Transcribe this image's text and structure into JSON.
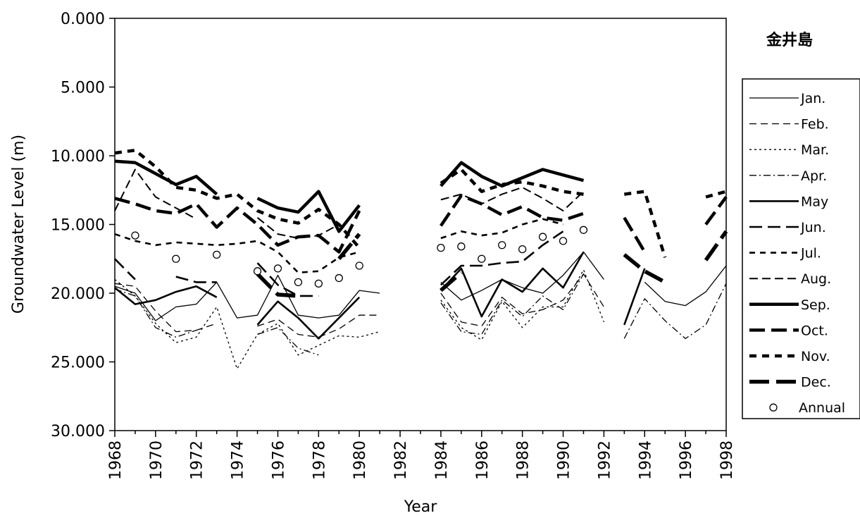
{
  "chart_data": {
    "type": "line",
    "station_label": "金井島",
    "xlabel": "Year",
    "ylabel": "Groundwater  Level (m)",
    "xlim": [
      1968,
      1998
    ],
    "ylim": [
      0,
      30
    ],
    "y_inverted": true,
    "grid": false,
    "legend_position": "right",
    "x_ticks": [
      "1968",
      "1970",
      "1972",
      "1974",
      "1976",
      "1978",
      "1980",
      "1982",
      "1984",
      "1986",
      "1988",
      "1990",
      "1992",
      "1994",
      "1996",
      "1998"
    ],
    "y_ticks": [
      "0.000",
      "5.000",
      "10.000",
      "15.000",
      "20.000",
      "25.000",
      "30.000"
    ],
    "series": [
      {
        "name": "Jan.",
        "style": "thin-solid",
        "x": [
          1968,
          1969,
          1970,
          1971,
          1972,
          1973,
          1974,
          1975,
          1976,
          1977,
          1978,
          1979,
          1980,
          1981,
          null,
          1984,
          1985,
          1986,
          1987,
          1988,
          1989,
          1990,
          1991,
          1992,
          null,
          1994,
          1995,
          1996,
          1997,
          1998
        ],
        "y": [
          19.5,
          20.0,
          22.0,
          21.0,
          20.8,
          19.2,
          21.8,
          21.6,
          18.7,
          21.6,
          21.8,
          21.6,
          19.8,
          20.0,
          null,
          19.2,
          20.5,
          19.8,
          19.0,
          19.6,
          20.0,
          18.7,
          17.0,
          19.0,
          null,
          19.2,
          20.6,
          20.9,
          19.9,
          18.0
        ]
      },
      {
        "name": "Feb.",
        "style": "thin-dash",
        "x": [
          1968,
          1969,
          1970,
          1971,
          1972,
          1973,
          1974,
          1975,
          1976,
          1977,
          1978,
          1979,
          1980,
          1981,
          null,
          1984,
          1985,
          1986,
          1987,
          1988,
          1989,
          1990,
          1991,
          1992,
          null,
          1993,
          1994,
          1995,
          1996,
          1997,
          1998
        ],
        "y": [
          19.3,
          19.5,
          21.3,
          22.8,
          22.7,
          22.2,
          null,
          22.4,
          21.9,
          23.0,
          23.2,
          22.6,
          21.6,
          21.6,
          null,
          20.0,
          22.1,
          22.4,
          20.3,
          21.5,
          21.2,
          20.5,
          18.6,
          21.0,
          null,
          null,
          null,
          null,
          null,
          null,
          null
        ]
      },
      {
        "name": "Mar.",
        "style": "thin-dot",
        "x": [
          1968,
          1969,
          1970,
          1971,
          1972,
          1973,
          1974,
          1975,
          1976,
          1977,
          1978,
          1979,
          1980,
          1981,
          null,
          1984,
          1985,
          1986,
          1987,
          1988,
          1989,
          1990,
          1991,
          1992
        ],
        "y": [
          19.0,
          20.2,
          22.2,
          23.6,
          23.2,
          21.0,
          25.5,
          23.0,
          22.2,
          24.5,
          23.8,
          23.1,
          23.2,
          22.8,
          null,
          20.5,
          22.5,
          23.4,
          20.6,
          22.5,
          21.0,
          21.0,
          18.3,
          22.1
        ]
      },
      {
        "name": "Apr.",
        "style": "thin-dashdot",
        "x": [
          1968,
          1969,
          1970,
          1971,
          1972,
          1973,
          1974,
          1975,
          1976,
          1977,
          1978,
          1979,
          1980,
          null,
          1984,
          1985,
          1986,
          1987,
          1988,
          1989,
          1990,
          1991,
          1992,
          null,
          1993,
          1994,
          1995,
          1996,
          1997,
          1998
        ],
        "y": [
          19.7,
          20.2,
          22.5,
          23.2,
          22.7,
          null,
          null,
          23.0,
          22.5,
          24.0,
          24.5,
          null,
          null,
          null,
          20.7,
          22.8,
          23.0,
          20.5,
          21.7,
          20.2,
          21.2,
          18.6,
          null,
          null,
          23.3,
          20.4,
          22.0,
          23.3,
          22.3,
          19.3
        ]
      },
      {
        "name": "May",
        "style": "medium-solid",
        "x": [
          1968,
          1969,
          1970,
          1971,
          1972,
          1973,
          null,
          1975,
          1976,
          1977,
          1978,
          1979,
          1980,
          null,
          1984,
          1985,
          1986,
          1987,
          1988,
          1989,
          1990,
          1991,
          null,
          1993,
          1994
        ],
        "y": [
          19.6,
          20.8,
          20.5,
          19.9,
          19.5,
          20.3,
          null,
          22.3,
          20.6,
          21.8,
          23.3,
          21.8,
          20.3,
          null,
          19.8,
          18.2,
          21.7,
          19.0,
          19.9,
          18.2,
          19.6,
          17.0,
          null,
          22.3,
          18.2
        ]
      },
      {
        "name": "Jun.",
        "style": "medium-longdash",
        "x": [
          1968,
          1969,
          1970,
          1971,
          1972,
          1973,
          1974,
          1975,
          1976,
          1977,
          1978,
          1979,
          1980,
          null,
          1984,
          1985,
          1986,
          1987,
          1988,
          1989,
          1990,
          1991
        ],
        "y": [
          17.5,
          19.0,
          null,
          18.8,
          19.2,
          19.2,
          null,
          17.8,
          19.4,
          20.2,
          20.2,
          null,
          null,
          null,
          19.4,
          18.0,
          18.0,
          17.8,
          17.7,
          16.5,
          15.5,
          null
        ]
      },
      {
        "name": "Jul.",
        "style": "medium-dash",
        "x": [
          1968,
          1969,
          1970,
          1971,
          1972,
          1973,
          1974,
          1975,
          1976,
          1977,
          1978,
          1979,
          1980,
          null,
          1984,
          1985,
          1986,
          1987,
          1988,
          1989,
          1990,
          1991
        ],
        "y": [
          15.7,
          16.2,
          16.5,
          16.3,
          16.4,
          16.5,
          16.4,
          16.2,
          17.0,
          18.5,
          18.4,
          17.4,
          17.0,
          null,
          16.0,
          15.5,
          15.8,
          15.6,
          15.0,
          14.6,
          15.0,
          null
        ]
      },
      {
        "name": "Aug.",
        "style": "medium-dash2",
        "x": [
          1968,
          1969,
          1970,
          1971,
          1972,
          1973,
          1974,
          1975,
          1976,
          1977,
          1978,
          1979,
          1980,
          null,
          1984,
          1985,
          1986,
          1987,
          1988,
          1989,
          1990,
          1991
        ],
        "y": [
          14.0,
          11.0,
          13.0,
          13.8,
          14.6,
          null,
          null,
          14.5,
          15.7,
          16.0,
          15.8,
          15.0,
          null,
          null,
          13.2,
          12.8,
          13.5,
          12.8,
          12.3,
          13.1,
          14.0,
          12.6
        ]
      },
      {
        "name": "Sep.",
        "style": "thick-solid",
        "x": [
          1968,
          1969,
          1970,
          1971,
          1972,
          1973,
          null,
          1975,
          1976,
          1977,
          1978,
          1979,
          1980,
          null,
          1984,
          1985,
          1986,
          1987,
          1988,
          1989,
          1990,
          1991
        ],
        "y": [
          10.4,
          10.5,
          11.3,
          12.1,
          11.5,
          12.8,
          null,
          13.1,
          13.8,
          14.1,
          12.6,
          15.5,
          13.6,
          null,
          12.2,
          10.5,
          11.5,
          12.2,
          11.6,
          11.0,
          11.4,
          11.8
        ]
      },
      {
        "name": "Oct.",
        "style": "thick-longdash",
        "x": [
          1968,
          1969,
          1970,
          1971,
          1972,
          1973,
          1974,
          1975,
          1976,
          1977,
          1978,
          1979,
          1980,
          null,
          1984,
          1985,
          1986,
          1987,
          1988,
          1989,
          1990,
          1991,
          null,
          1993,
          1994,
          1995,
          null,
          1997,
          1998
        ],
        "y": [
          13.1,
          13.5,
          14.0,
          14.2,
          13.5,
          15.2,
          13.8,
          15.0,
          16.5,
          15.9,
          15.8,
          17.0,
          14.0,
          null,
          15.1,
          12.9,
          13.5,
          14.3,
          13.7,
          14.5,
          14.7,
          14.2,
          null,
          14.5,
          17.0,
          null,
          null,
          15.0,
          13.0
        ]
      },
      {
        "name": "Nov.",
        "style": "thick-dash",
        "x": [
          1968,
          1969,
          1970,
          1971,
          1972,
          1973,
          1974,
          1975,
          1976,
          1977,
          1978,
          1979,
          1980,
          null,
          1984,
          1985,
          1986,
          1987,
          1988,
          1989,
          1990,
          1991,
          null,
          1993,
          1994,
          1995,
          null,
          1997,
          1998
        ],
        "y": [
          9.8,
          9.6,
          10.8,
          12.3,
          12.5,
          13.1,
          12.8,
          14.0,
          14.6,
          14.9,
          13.9,
          15.0,
          16.7,
          null,
          12.0,
          11.0,
          12.6,
          12.1,
          11.9,
          12.2,
          12.6,
          12.8,
          null,
          12.8,
          12.6,
          17.4,
          null,
          13.0,
          12.6
        ]
      },
      {
        "name": "Dec.",
        "style": "thick-xlongdash",
        "x": [
          1968,
          1969,
          1970,
          1971,
          1972,
          1973,
          1974,
          1975,
          1976,
          1977,
          1978,
          1979,
          1980,
          null,
          1984,
          1985,
          1986,
          1987,
          1988,
          1989,
          1990,
          1991,
          null,
          1993,
          1994,
          1995,
          1996,
          1997,
          1998
        ],
        "y": [
          17.2,
          null,
          null,
          null,
          null,
          19.3,
          null,
          18.6,
          20.1,
          20.2,
          null,
          17.5,
          15.7,
          null,
          19.8,
          18.5,
          null,
          null,
          null,
          null,
          null,
          16.5,
          null,
          17.2,
          18.4,
          19.2,
          null,
          17.6,
          15.5
        ]
      }
    ],
    "annual": {
      "name": "Annual",
      "x": [
        1969,
        1971,
        1973,
        1975,
        1976,
        1977,
        1978,
        1979,
        1980,
        1984,
        1985,
        1986,
        1987,
        1988,
        1989,
        1990,
        1991
      ],
      "y": [
        15.8,
        17.5,
        17.2,
        18.4,
        18.2,
        19.2,
        19.3,
        18.9,
        18.0,
        16.7,
        16.6,
        17.5,
        16.5,
        16.8,
        15.9,
        16.2,
        15.4
      ]
    }
  },
  "legend_labels": [
    "Jan.",
    "Feb.",
    "Mar.",
    "Apr.",
    "May",
    "Jun.",
    "Jul.",
    "Aug.",
    "Sep.",
    "Oct.",
    "Nov.",
    "Dec.",
    "Annual"
  ]
}
